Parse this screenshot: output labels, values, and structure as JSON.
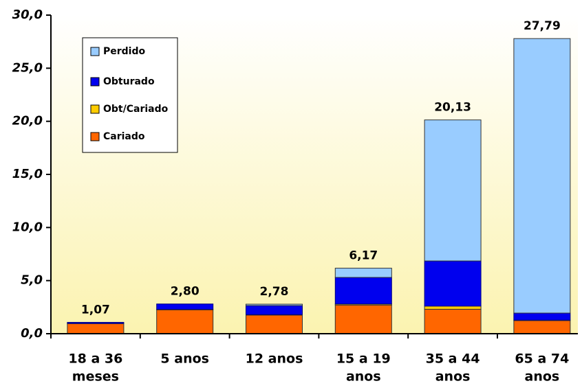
{
  "chart_data": {
    "type": "stacked_bar",
    "categories": [
      [
        "18 a 36",
        "meses"
      ],
      [
        "5 anos"
      ],
      [
        "12 anos"
      ],
      [
        "15 a 19",
        "anos"
      ],
      [
        "35 a 44",
        "anos"
      ],
      [
        "65 a 74",
        "anos"
      ]
    ],
    "series": [
      {
        "name": "Cariado",
        "color": "#ff6600",
        "values": [
          0.95,
          2.25,
          1.75,
          2.7,
          2.3,
          1.23
        ]
      },
      {
        "name": "Obt/Cariado",
        "color": "#ffcc00",
        "values": [
          0.02,
          0.05,
          0.05,
          0.1,
          0.3,
          0.05
        ]
      },
      {
        "name": "Obturado",
        "color": "#0000ee",
        "values": [
          0.1,
          0.5,
          0.85,
          2.5,
          4.25,
          0.66
        ]
      },
      {
        "name": "Perdido",
        "color": "#99ccff",
        "values": [
          0,
          0,
          0.13,
          0.87,
          13.28,
          25.85
        ]
      }
    ],
    "totals": [
      1.07,
      2.8,
      2.78,
      6.17,
      20.13,
      27.79
    ],
    "value_labels": [
      "1,07",
      "2,80",
      "2,78",
      "6,17",
      "20,13",
      "27,79"
    ],
    "ylim": [
      0,
      30
    ],
    "yticks": [
      {
        "value": 0,
        "label": "0,0"
      },
      {
        "value": 5,
        "label": "5,0"
      },
      {
        "value": 10,
        "label": "10,0"
      },
      {
        "value": 15,
        "label": "15,0"
      },
      {
        "value": 20,
        "label": "20,0"
      },
      {
        "value": 25,
        "label": "25,0"
      },
      {
        "value": 30,
        "label": "30,0"
      }
    ],
    "legend": "upper-left"
  }
}
